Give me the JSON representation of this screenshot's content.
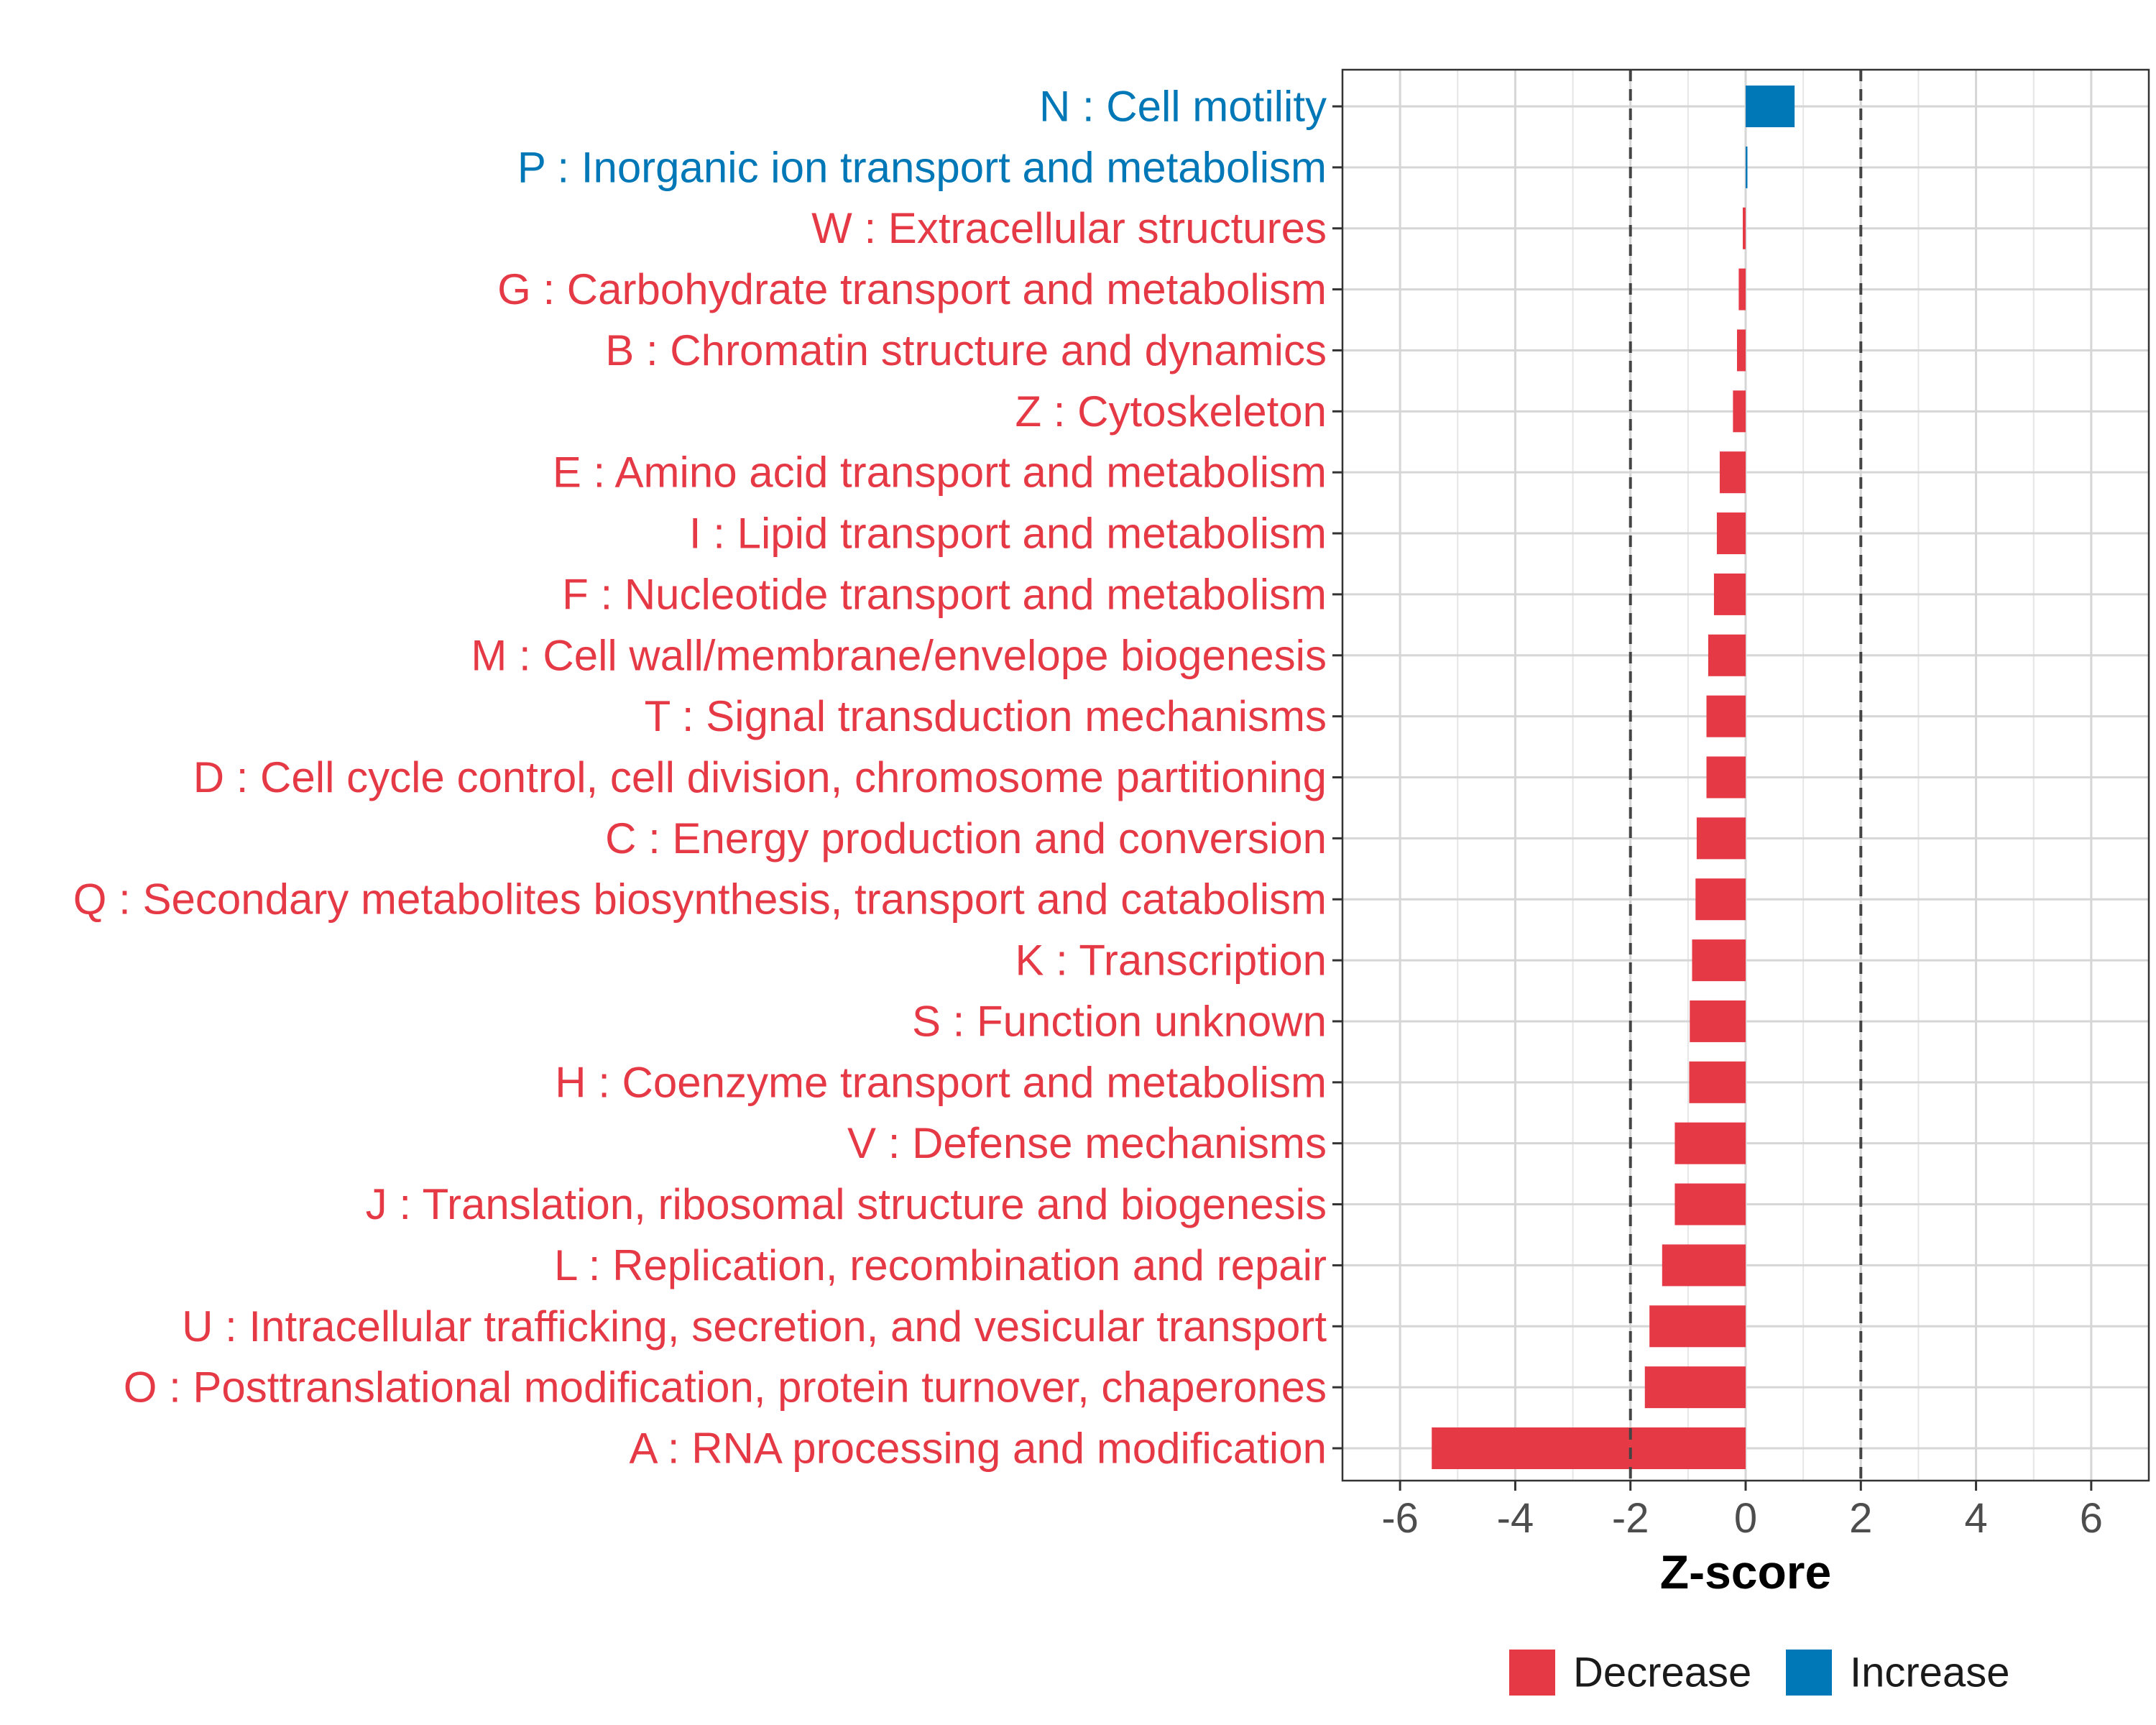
{
  "chart_data": {
    "type": "bar",
    "orientation": "horizontal",
    "xlabel": "Z-score",
    "ylabel": "",
    "xlim": [
      -7,
      7
    ],
    "xticks": [
      -6,
      -4,
      -2,
      0,
      2,
      4,
      6
    ],
    "xtick_labels": [
      "-6",
      "-4",
      "-2",
      "0",
      "2",
      "4",
      "6"
    ],
    "reference_lines": [
      -2,
      2
    ],
    "grid": true,
    "legend_position": "bottom",
    "legend": [
      {
        "name": "Decrease",
        "color": "#E63946"
      },
      {
        "name": "Increase",
        "color": "#0077B6"
      }
    ],
    "categories": [
      "N : Cell motility",
      "P : Inorganic ion transport and metabolism",
      "W : Extracellular structures",
      "G : Carbohydrate transport and metabolism",
      "B : Chromatin structure and dynamics",
      "Z : Cytoskeleton",
      "E : Amino acid transport and metabolism",
      "I : Lipid transport and metabolism",
      "F : Nucleotide transport and metabolism",
      "M : Cell wall/membrane/envelope biogenesis",
      "T : Signal transduction mechanisms",
      "D : Cell cycle control, cell division, chromosome partitioning",
      "C : Energy production and conversion",
      "Q : Secondary metabolites biosynthesis, transport and catabolism",
      "K : Transcription",
      "S : Function unknown",
      "H : Coenzyme transport and metabolism",
      "V : Defense mechanisms",
      "J : Translation, ribosomal structure and biogenesis",
      "L : Replication, recombination and repair",
      "U : Intracellular trafficking, secretion, and vesicular transport",
      "O : Posttranslational modification, protein turnover, chaperones",
      "A : RNA processing and modification"
    ],
    "values": [
      0.85,
      0.03,
      -0.05,
      -0.12,
      -0.15,
      -0.22,
      -0.45,
      -0.5,
      -0.55,
      -0.65,
      -0.68,
      -0.68,
      -0.85,
      -0.87,
      -0.93,
      -0.97,
      -0.98,
      -1.23,
      -1.23,
      -1.45,
      -1.67,
      -1.75,
      -5.45
    ],
    "groups": [
      "Increase",
      "Increase",
      "Decrease",
      "Decrease",
      "Decrease",
      "Decrease",
      "Decrease",
      "Decrease",
      "Decrease",
      "Decrease",
      "Decrease",
      "Decrease",
      "Decrease",
      "Decrease",
      "Decrease",
      "Decrease",
      "Decrease",
      "Decrease",
      "Decrease",
      "Decrease",
      "Decrease",
      "Decrease",
      "Decrease"
    ]
  }
}
